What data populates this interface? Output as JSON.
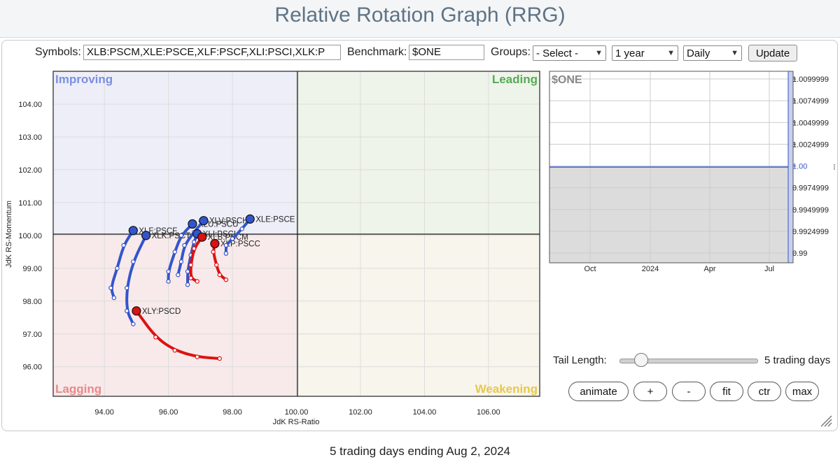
{
  "header": {
    "title": "Relative Rotation Graph (RRG)"
  },
  "controls": {
    "symbols_label": "Symbols:",
    "symbols_value": "XLB:PSCM,XLE:PSCE,XLF:PSCF,XLI:PSCI,XLK:P",
    "benchmark_label": "Benchmark:",
    "benchmark_value": "$ONE",
    "groups_label": "Groups:",
    "groups_selected": "- Select -",
    "period_selected": "1 year",
    "frequency_selected": "Daily",
    "update_label": "Update"
  },
  "rrg": {
    "quadrants": {
      "improving": "Improving",
      "leading": "Leading",
      "lagging": "Lagging",
      "weakening": "Weakening"
    },
    "xlabel": "JdK RS-Ratio",
    "ylabel": "JdK RS-Momentum",
    "x_ticks": [
      "94.00",
      "96.00",
      "98.00",
      "100.00",
      "102.00",
      "104.00",
      "106.00"
    ],
    "y_ticks": [
      "104.00",
      "103.00",
      "102.00",
      "101.00",
      "100.00",
      "99.00",
      "98.00",
      "97.00",
      "96.00"
    ]
  },
  "chart_data": {
    "type": "scatter",
    "xlabel": "JdK RS-Ratio",
    "ylabel": "JdK RS-Momentum",
    "xlim": [
      92.4,
      107.6
    ],
    "ylim": [
      95.1,
      105.0
    ],
    "series": [
      {
        "name": "XLF:PSCF",
        "color": "#3355cc",
        "points": [
          [
            94.3,
            98.1
          ],
          [
            94.2,
            98.4
          ],
          [
            94.4,
            99.0
          ],
          [
            94.6,
            99.7
          ],
          [
            94.9,
            100.15
          ]
        ]
      },
      {
        "name": "XLK:PSCT",
        "color": "#3355cc",
        "points": [
          [
            94.9,
            97.3
          ],
          [
            94.7,
            97.7
          ],
          [
            94.7,
            98.4
          ],
          [
            94.9,
            99.2
          ],
          [
            95.3,
            100.0
          ]
        ]
      },
      {
        "name": "XLY:PSCD",
        "color": "#dd1111",
        "points": [
          [
            97.6,
            96.25
          ],
          [
            96.9,
            96.3
          ],
          [
            96.2,
            96.5
          ],
          [
            95.6,
            96.9
          ],
          [
            95.0,
            97.7
          ]
        ]
      },
      {
        "name": "XLU:PSCU",
        "color": "#3355cc",
        "points": [
          [
            96.0,
            98.6
          ],
          [
            96.0,
            98.9
          ],
          [
            96.2,
            99.5
          ],
          [
            96.4,
            100.0
          ],
          [
            96.75,
            100.35
          ]
        ]
      },
      {
        "name": "XLV:PSCH",
        "color": "#3355cc",
        "points": [
          [
            96.3,
            98.8
          ],
          [
            96.4,
            99.2
          ],
          [
            96.5,
            99.7
          ],
          [
            96.8,
            100.1
          ],
          [
            97.1,
            100.45
          ]
        ]
      },
      {
        "name": "XLI:PSCI",
        "color": "#3355cc",
        "points": [
          [
            96.6,
            98.5
          ],
          [
            96.6,
            98.9
          ],
          [
            96.7,
            99.4
          ],
          [
            96.8,
            99.8
          ],
          [
            96.9,
            100.05
          ]
        ]
      },
      {
        "name": "XLB:PSCM",
        "color": "#dd1111",
        "points": [
          [
            96.9,
            98.6
          ],
          [
            96.7,
            98.7
          ],
          [
            96.7,
            99.1
          ],
          [
            96.8,
            99.6
          ],
          [
            97.05,
            99.95
          ]
        ]
      },
      {
        "name": "XLP:PSCC",
        "color": "#dd1111",
        "points": [
          [
            97.8,
            98.65
          ],
          [
            97.6,
            98.8
          ],
          [
            97.5,
            99.1
          ],
          [
            97.4,
            99.5
          ],
          [
            97.45,
            99.75
          ]
        ]
      },
      {
        "name": "XLE:PSCE",
        "color": "#3355cc",
        "points": [
          [
            97.8,
            99.45
          ],
          [
            97.8,
            99.7
          ],
          [
            98.0,
            99.9
          ],
          [
            98.3,
            100.2
          ],
          [
            98.55,
            100.5
          ]
        ]
      }
    ]
  },
  "benchmark_chart": {
    "symbol": "$ONE",
    "y_ticks": [
      "1.0099999",
      "1.0074999",
      "1.0049999",
      "1.0024999",
      "1.00",
      "0.9974999",
      "0.9949999",
      "0.9924999",
      "0.99"
    ],
    "x_ticks": [
      "Oct",
      "2024",
      "Apr",
      "Jul"
    ],
    "value": 1.0
  },
  "tail": {
    "label": "Tail Length:",
    "value_text": "5 trading days",
    "value": 5
  },
  "buttons": {
    "animate": "animate",
    "plus": "+",
    "minus": "-",
    "fit": "fit",
    "ctr": "ctr",
    "max": "max"
  },
  "footer": {
    "text": "5 trading days ending Aug 2, 2024"
  },
  "colors": {
    "leading_green": "#55aa55",
    "lagging_red": "#e88a8a",
    "improving_blue": "#7a8fe0",
    "weakening_yellow": "#e8c84a"
  }
}
